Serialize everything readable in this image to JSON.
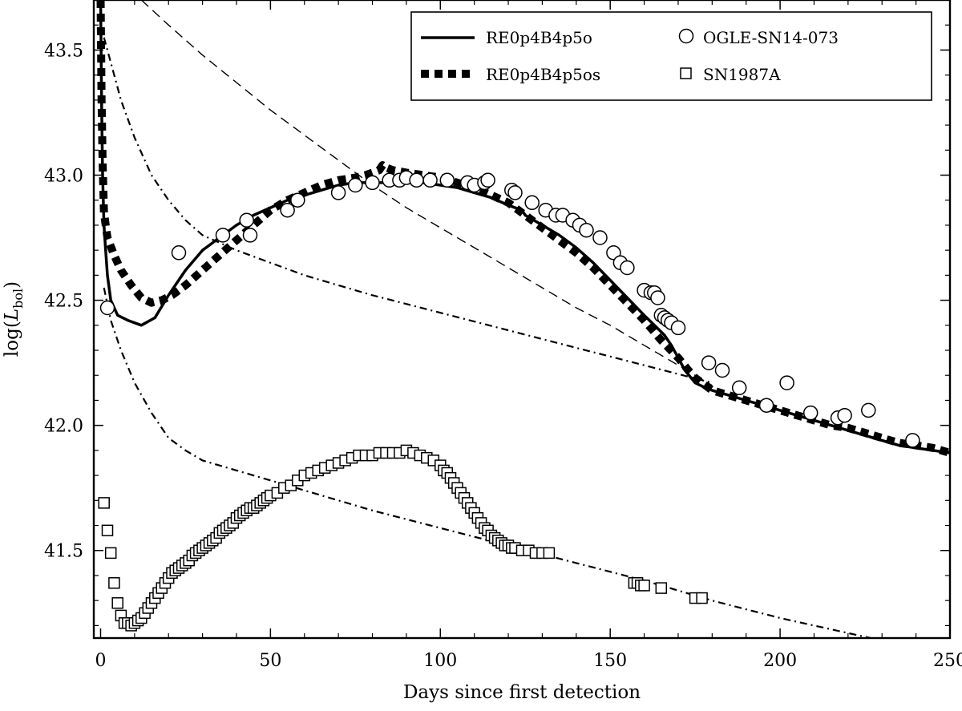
{
  "chart_data": {
    "type": "line",
    "xlabel": "Days since first detection",
    "ylabel_prefix": "log(",
    "ylabel_var": "L",
    "ylabel_sub": "bol",
    "ylabel_suffix": ")",
    "xlim": [
      -2,
      250
    ],
    "ylim": [
      41.15,
      43.7
    ],
    "x_ticks": [
      0,
      50,
      100,
      150,
      200,
      250
    ],
    "y_ticks": [
      41.5,
      42.0,
      42.5,
      43.0,
      43.5
    ],
    "y_tick_labels": [
      "41.5",
      "42.0",
      "42.5",
      "43.0",
      "43.5"
    ],
    "legend_position": "top-right",
    "legend": {
      "solid": "RE0p4B4p5o",
      "dotted": "RE0p4B4p5os",
      "circles": "OGLE-SN14-073",
      "squares": "SN1987A"
    },
    "series": [
      {
        "name": "RE0p4B4p5o",
        "style": "solid",
        "x": [
          0,
          0.3,
          0.6,
          1,
          1.5,
          2,
          3,
          5,
          8,
          12,
          16,
          20,
          25,
          30,
          35,
          40,
          45,
          50,
          55,
          60,
          65,
          70,
          75,
          80,
          85,
          90,
          95,
          100,
          105,
          110,
          115,
          120,
          124,
          125,
          130,
          135,
          140,
          145,
          150,
          155,
          160,
          163,
          166,
          168,
          170,
          172,
          175,
          178,
          180,
          185,
          190,
          195,
          200,
          205,
          210,
          215,
          220,
          225,
          230,
          235,
          240,
          245,
          250
        ],
        "y": [
          43.7,
          43.3,
          43.0,
          42.8,
          42.7,
          42.6,
          42.5,
          42.44,
          42.42,
          42.4,
          42.43,
          42.52,
          42.62,
          42.7,
          42.75,
          42.8,
          42.84,
          42.87,
          42.9,
          42.92,
          42.94,
          42.96,
          42.97,
          42.97,
          42.97,
          42.97,
          42.97,
          42.96,
          42.95,
          42.93,
          42.91,
          42.88,
          42.86,
          42.84,
          42.8,
          42.76,
          42.71,
          42.65,
          42.58,
          42.51,
          42.44,
          42.4,
          42.36,
          42.32,
          42.27,
          42.22,
          42.17,
          42.15,
          42.14,
          42.12,
          42.1,
          42.08,
          42.06,
          42.04,
          42.02,
          42.0,
          41.98,
          41.96,
          41.94,
          41.92,
          41.91,
          41.9,
          41.89
        ]
      },
      {
        "name": "RE0p4B4p5os",
        "style": "thick-dotted",
        "x": [
          0,
          0.3,
          0.6,
          1,
          2,
          4,
          6,
          9,
          12,
          15,
          18,
          21,
          25,
          30,
          35,
          40,
          45,
          50,
          55,
          60,
          65,
          70,
          75,
          78,
          80,
          82,
          83,
          84,
          86,
          90,
          95,
          100,
          105,
          110,
          115,
          120,
          125,
          130,
          135,
          140,
          145,
          150,
          155,
          160,
          165,
          170,
          173,
          175,
          178,
          180,
          185,
          190,
          195,
          200,
          205,
          210,
          215,
          220,
          225,
          230,
          235,
          240,
          245,
          250
        ],
        "y": [
          43.7,
          43.3,
          43.05,
          42.85,
          42.75,
          42.68,
          42.62,
          42.56,
          42.51,
          42.49,
          42.5,
          42.52,
          42.56,
          42.62,
          42.68,
          42.74,
          42.8,
          42.86,
          42.9,
          42.93,
          42.96,
          42.98,
          42.99,
          43.0,
          43.01,
          43.02,
          43.04,
          43.03,
          43.02,
          43.01,
          43.0,
          42.99,
          42.97,
          42.95,
          42.92,
          42.89,
          42.84,
          42.79,
          42.74,
          42.69,
          42.63,
          42.56,
          42.49,
          42.42,
          42.34,
          42.27,
          42.22,
          42.19,
          42.16,
          42.14,
          42.12,
          42.1,
          42.08,
          42.06,
          42.04,
          42.02,
          42.0,
          41.99,
          41.97,
          41.95,
          41.93,
          41.92,
          41.91,
          41.89
        ]
      },
      {
        "name": "model-dashed",
        "style": "dashed",
        "x": [
          12,
          20,
          30,
          40,
          50,
          60,
          70,
          80,
          90,
          100,
          110,
          120,
          130,
          140,
          150,
          160,
          170,
          180
        ],
        "y": [
          43.7,
          43.6,
          43.48,
          43.37,
          43.26,
          43.16,
          43.06,
          42.96,
          42.87,
          42.79,
          42.71,
          42.63,
          42.55,
          42.47,
          42.4,
          42.32,
          42.24,
          42.16
        ]
      },
      {
        "name": "model-dashdot-upper",
        "style": "dashdot",
        "x": [
          1,
          3,
          6,
          10,
          15,
          20,
          25,
          30,
          40,
          50,
          60,
          70,
          80,
          100,
          120,
          140,
          160,
          180
        ],
        "y": [
          43.55,
          43.45,
          43.3,
          43.15,
          43.0,
          42.9,
          42.82,
          42.76,
          42.7,
          42.65,
          42.6,
          42.56,
          42.52,
          42.45,
          42.38,
          42.31,
          42.24,
          42.17
        ]
      },
      {
        "name": "model-dashdot-lower",
        "style": "dashdot",
        "x": [
          1,
          3,
          6,
          10,
          15,
          20,
          25,
          30,
          40,
          50,
          60,
          70,
          80,
          100,
          120,
          140,
          160,
          180,
          200,
          220,
          230
        ],
        "y": [
          42.55,
          42.42,
          42.3,
          42.17,
          42.05,
          41.95,
          41.9,
          41.86,
          41.82,
          41.78,
          41.74,
          41.7,
          41.66,
          41.59,
          41.52,
          41.45,
          41.38,
          41.3,
          41.23,
          41.17,
          41.14
        ]
      },
      {
        "name": "OGLE-SN14-073",
        "style": "circles",
        "x": [
          2,
          23,
          36,
          43,
          44,
          55,
          58,
          70,
          75,
          80,
          85,
          88,
          90,
          93,
          97,
          102,
          108,
          110,
          113,
          114,
          121,
          122,
          127,
          131,
          134,
          136,
          139,
          141,
          143,
          147,
          151,
          153,
          155,
          160,
          162,
          163,
          164,
          165,
          166,
          167,
          168,
          170,
          179,
          183,
          188,
          196,
          202,
          209,
          217,
          219,
          226,
          239
        ],
        "y": [
          42.47,
          42.69,
          42.76,
          42.82,
          42.76,
          42.86,
          42.9,
          42.93,
          42.96,
          42.97,
          42.98,
          42.98,
          42.99,
          42.98,
          42.98,
          42.98,
          42.97,
          42.96,
          42.97,
          42.98,
          42.94,
          42.93,
          42.89,
          42.86,
          42.84,
          42.84,
          42.82,
          42.8,
          42.78,
          42.75,
          42.69,
          42.65,
          42.63,
          42.54,
          42.53,
          42.53,
          42.51,
          42.44,
          42.43,
          42.42,
          42.41,
          42.39,
          42.25,
          42.22,
          42.15,
          42.08,
          42.17,
          42.05,
          42.03,
          42.04,
          42.06,
          41.94
        ]
      },
      {
        "name": "SN1987A",
        "style": "squares",
        "x": [
          1,
          2,
          3,
          4,
          5,
          6,
          7,
          8,
          9,
          10,
          11,
          12,
          13,
          14,
          15,
          16,
          17,
          18,
          19,
          20,
          21,
          22,
          23,
          24,
          25,
          26,
          27,
          28,
          29,
          30,
          31,
          32,
          33,
          34,
          35,
          36,
          37,
          38,
          39,
          40,
          41,
          42,
          43,
          44,
          45,
          46,
          47,
          48,
          49,
          50,
          52,
          54,
          56,
          58,
          60,
          62,
          64,
          66,
          68,
          70,
          72,
          74,
          76,
          78,
          80,
          82,
          84,
          86,
          88,
          90,
          92,
          94,
          96,
          98,
          100,
          101,
          102,
          103,
          104,
          105,
          106,
          107,
          108,
          109,
          110,
          111,
          112,
          113,
          114,
          115,
          116,
          117,
          118,
          119,
          120,
          121,
          122,
          124,
          126,
          128,
          130,
          132,
          157,
          158,
          159,
          160,
          165,
          175,
          177
        ],
        "y": [
          41.69,
          41.58,
          41.49,
          41.37,
          41.29,
          41.24,
          41.21,
          41.21,
          41.2,
          41.21,
          41.22,
          41.23,
          41.25,
          41.27,
          41.29,
          41.31,
          41.33,
          41.35,
          41.37,
          41.39,
          41.41,
          41.42,
          41.43,
          41.44,
          41.45,
          41.46,
          41.48,
          41.49,
          41.5,
          41.51,
          41.52,
          41.53,
          41.54,
          41.55,
          41.57,
          41.58,
          41.59,
          41.6,
          41.61,
          41.63,
          41.64,
          41.65,
          41.66,
          41.67,
          41.67,
          41.68,
          41.69,
          41.7,
          41.71,
          41.72,
          41.73,
          41.75,
          41.76,
          41.78,
          41.8,
          41.81,
          41.82,
          41.83,
          41.84,
          41.85,
          41.86,
          41.87,
          41.88,
          41.88,
          41.88,
          41.89,
          41.89,
          41.89,
          41.89,
          41.9,
          41.89,
          41.88,
          41.87,
          41.86,
          41.84,
          41.82,
          41.81,
          41.79,
          41.77,
          41.75,
          41.73,
          41.71,
          41.69,
          41.67,
          41.65,
          41.63,
          41.61,
          41.59,
          41.58,
          41.56,
          41.55,
          41.54,
          41.53,
          41.52,
          41.52,
          41.51,
          41.51,
          41.5,
          41.5,
          41.49,
          41.49,
          41.49,
          41.37,
          41.37,
          41.36,
          41.36,
          41.35,
          41.31,
          41.31
        ]
      }
    ]
  }
}
